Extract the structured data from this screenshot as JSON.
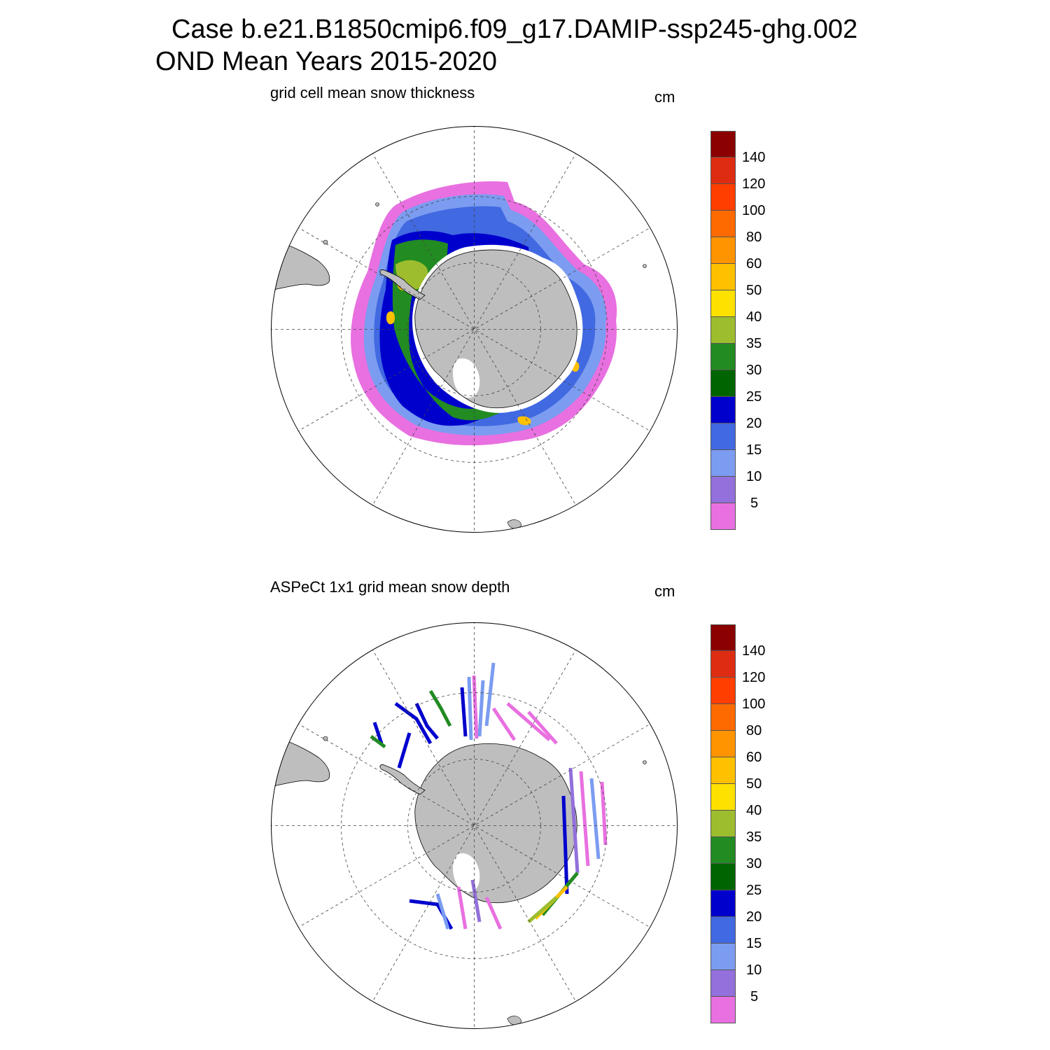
{
  "header": {
    "case_title": "Case b.e21.B1850cmip6.f09_g17.DAMIP-ssp245-ghg.002",
    "period_title": "OND Mean   Years 2015-2020"
  },
  "panels": [
    {
      "title": "grid cell mean snow thickness",
      "units": "cm"
    },
    {
      "title": "ASPeCt 1x1 grid mean snow depth",
      "units": "cm"
    }
  ],
  "colorbar": {
    "colors": [
      "#8b0000",
      "#dd2c12",
      "#ff3e00",
      "#ff6a00",
      "#ff9400",
      "#ffc000",
      "#ffe100",
      "#9dbd2e",
      "#228b22",
      "#006400",
      "#0000cd",
      "#4169e1",
      "#7b9cf0",
      "#9370db",
      "#e870e0"
    ],
    "labels": [
      "140",
      "120",
      "100",
      "80",
      "60",
      "50",
      "40",
      "35",
      "30",
      "25",
      "20",
      "15",
      "10",
      "5"
    ]
  },
  "map": {
    "land_color": "#bebebe",
    "projection": "south polar stereographic"
  }
}
